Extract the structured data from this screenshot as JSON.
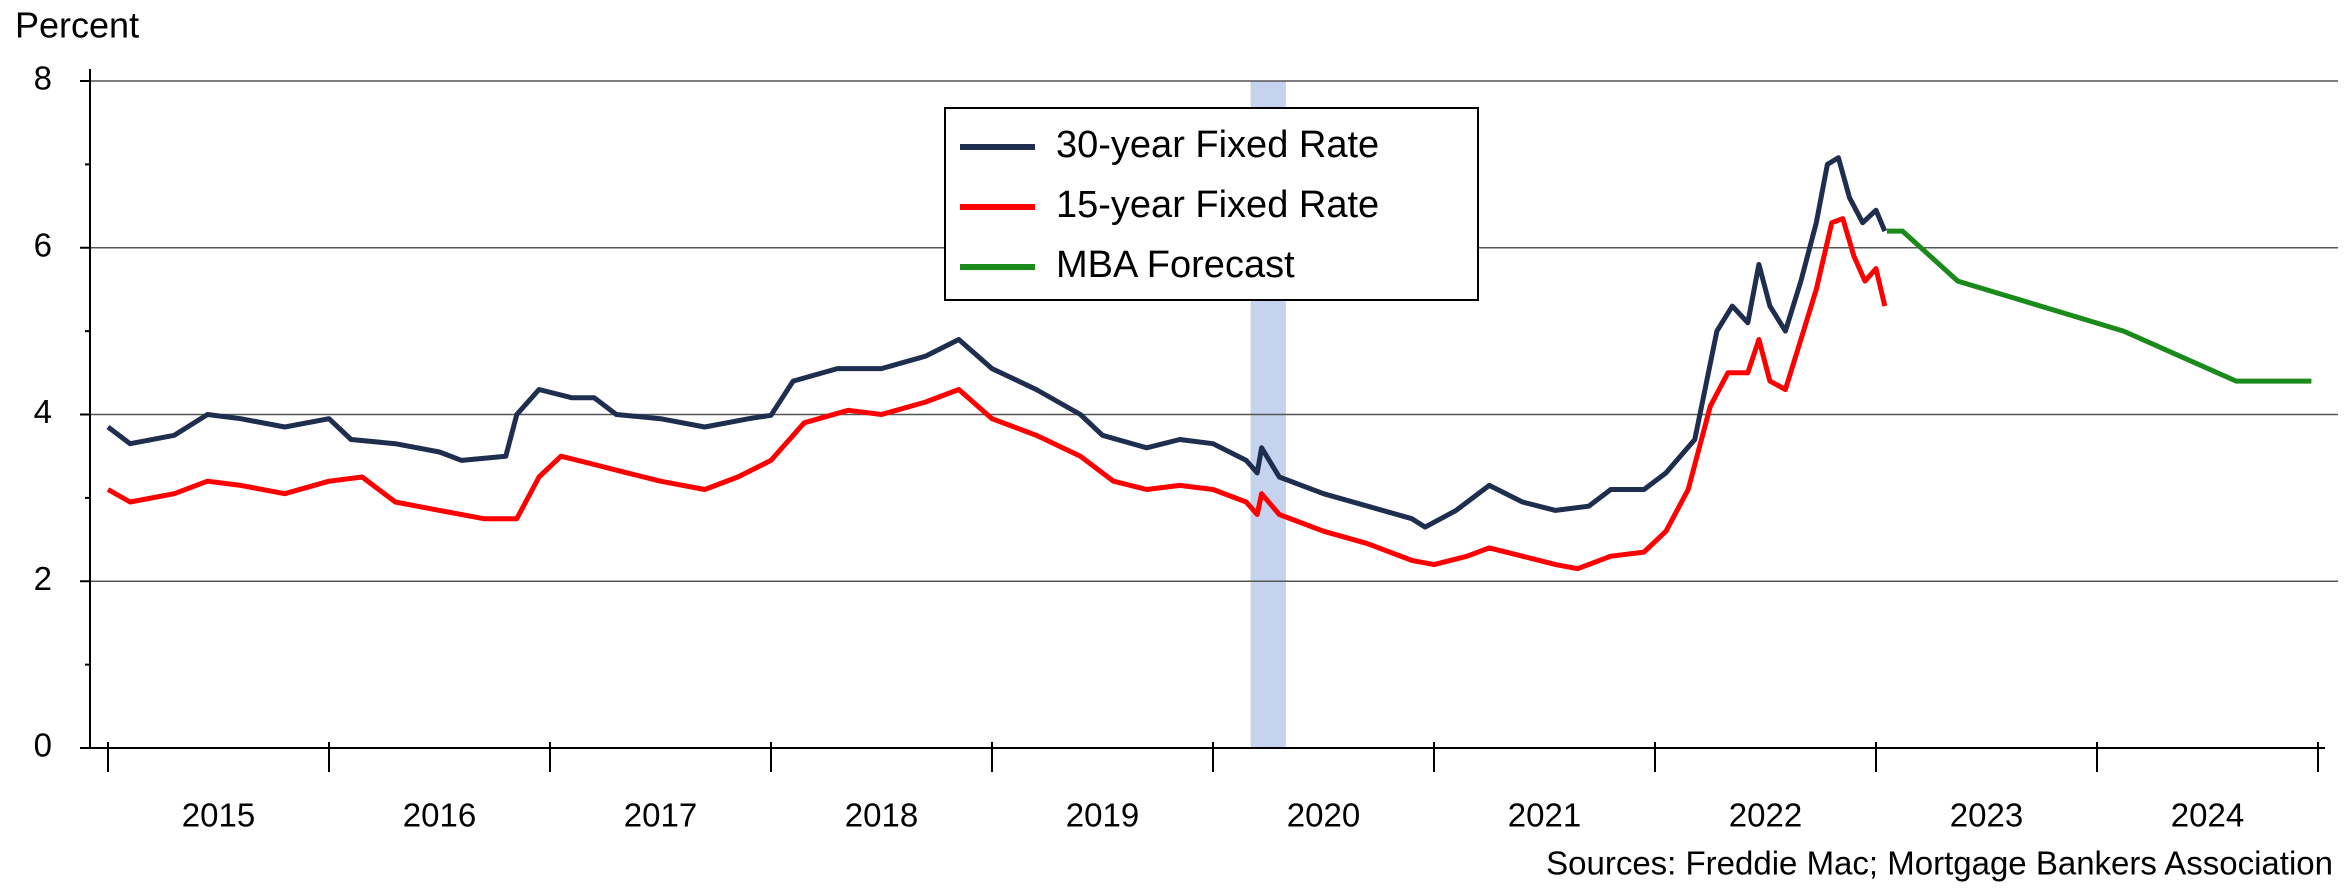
{
  "chart_data": {
    "type": "line",
    "y_label": "Percent",
    "source": "Sources: Freddie Mac; Mortgage Bankers Association",
    "xlim": [
      2015,
      2025
    ],
    "xticks": [
      {
        "value": 2015.5,
        "label": "2015"
      },
      {
        "value": 2016.5,
        "label": "2016"
      },
      {
        "value": 2017.5,
        "label": "2017"
      },
      {
        "value": 2018.5,
        "label": "2018"
      },
      {
        "value": 2019.5,
        "label": "2019"
      },
      {
        "value": 2020.5,
        "label": "2020"
      },
      {
        "value": 2021.5,
        "label": "2021"
      },
      {
        "value": 2022.5,
        "label": "2022"
      },
      {
        "value": 2023.5,
        "label": "2023"
      },
      {
        "value": 2024.5,
        "label": "2024"
      }
    ],
    "xtick_marks": [
      2015,
      2016,
      2017,
      2018,
      2019,
      2020,
      2021,
      2022,
      2023,
      2024,
      2025
    ],
    "ylim": [
      0,
      8
    ],
    "yticks": [
      0,
      2,
      4,
      6,
      8
    ],
    "yminor_ticks": [
      1,
      3,
      5,
      7
    ],
    "grid": true,
    "shaded_region": {
      "x": [
        2020.17,
        2020.33
      ],
      "color": "#c5d3ef"
    },
    "series": [
      {
        "name": "30-year Fixed Rate",
        "color": "#1f2d4e",
        "x": [
          2015.0,
          2015.1,
          2015.3,
          2015.45,
          2015.6,
          2015.8,
          2016.0,
          2016.1,
          2016.3,
          2016.5,
          2016.6,
          2016.8,
          2016.85,
          2016.95,
          2017.1,
          2017.2,
          2017.3,
          2017.5,
          2017.7,
          2017.9,
          2018.0,
          2018.1,
          2018.3,
          2018.5,
          2018.7,
          2018.85,
          2019.0,
          2019.2,
          2019.4,
          2019.5,
          2019.7,
          2019.85,
          2020.0,
          2020.15,
          2020.2,
          2020.22,
          2020.3,
          2020.5,
          2020.7,
          2020.9,
          2020.96,
          2021.1,
          2021.25,
          2021.4,
          2021.55,
          2021.7,
          2021.8,
          2021.95,
          2022.05,
          2022.18,
          2022.28,
          2022.35,
          2022.42,
          2022.47,
          2022.52,
          2022.59,
          2022.66,
          2022.73,
          2022.78,
          2022.83,
          2022.88,
          2022.94,
          2023.0,
          2023.04
        ],
        "values": [
          3.85,
          3.65,
          3.75,
          4.0,
          3.95,
          3.85,
          3.95,
          3.7,
          3.65,
          3.55,
          3.45,
          3.5,
          4.0,
          4.3,
          4.2,
          4.2,
          4.0,
          3.95,
          3.85,
          3.95,
          3.99,
          4.4,
          4.55,
          4.55,
          4.7,
          4.9,
          4.55,
          4.3,
          4.0,
          3.75,
          3.6,
          3.7,
          3.65,
          3.45,
          3.3,
          3.6,
          3.25,
          3.05,
          2.9,
          2.75,
          2.65,
          2.85,
          3.15,
          2.95,
          2.85,
          2.9,
          3.1,
          3.1,
          3.3,
          3.7,
          5.0,
          5.3,
          5.1,
          5.8,
          5.3,
          5.0,
          5.6,
          6.3,
          7.0,
          7.08,
          6.6,
          6.3,
          6.45,
          6.2
        ]
      },
      {
        "name": "15-year Fixed Rate",
        "color": "#ff0000",
        "x": [
          2015.0,
          2015.1,
          2015.3,
          2015.45,
          2015.6,
          2015.8,
          2016.0,
          2016.15,
          2016.3,
          2016.5,
          2016.7,
          2016.85,
          2016.95,
          2017.05,
          2017.2,
          2017.35,
          2017.5,
          2017.7,
          2017.85,
          2018.0,
          2018.15,
          2018.35,
          2018.5,
          2018.7,
          2018.85,
          2019.0,
          2019.2,
          2019.4,
          2019.55,
          2019.7,
          2019.85,
          2020.0,
          2020.15,
          2020.2,
          2020.22,
          2020.3,
          2020.5,
          2020.7,
          2020.9,
          2021.0,
          2021.15,
          2021.25,
          2021.4,
          2021.55,
          2021.65,
          2021.8,
          2021.95,
          2022.05,
          2022.15,
          2022.25,
          2022.33,
          2022.42,
          2022.47,
          2022.52,
          2022.59,
          2022.66,
          2022.73,
          2022.8,
          2022.85,
          2022.9,
          2022.95,
          2023.0,
          2023.04
        ],
        "values": [
          3.1,
          2.95,
          3.05,
          3.2,
          3.15,
          3.05,
          3.2,
          3.25,
          2.95,
          2.85,
          2.75,
          2.75,
          3.25,
          3.5,
          3.4,
          3.3,
          3.2,
          3.1,
          3.25,
          3.45,
          3.9,
          4.05,
          4.0,
          4.15,
          4.3,
          3.95,
          3.75,
          3.5,
          3.2,
          3.1,
          3.15,
          3.1,
          2.95,
          2.8,
          3.05,
          2.8,
          2.6,
          2.45,
          2.25,
          2.2,
          2.3,
          2.4,
          2.3,
          2.2,
          2.15,
          2.3,
          2.35,
          2.6,
          3.1,
          4.1,
          4.5,
          4.5,
          4.9,
          4.4,
          4.3,
          4.9,
          5.5,
          6.3,
          6.35,
          5.9,
          5.6,
          5.75,
          5.3
        ]
      },
      {
        "name": "MBA Forecast",
        "color": "#1a8a1a",
        "x": [
          2023.05,
          2023.12,
          2023.37,
          2024.12,
          2024.63,
          2024.97
        ],
        "values": [
          6.2,
          6.2,
          5.6,
          5.0,
          4.4,
          4.4
        ]
      }
    ]
  }
}
